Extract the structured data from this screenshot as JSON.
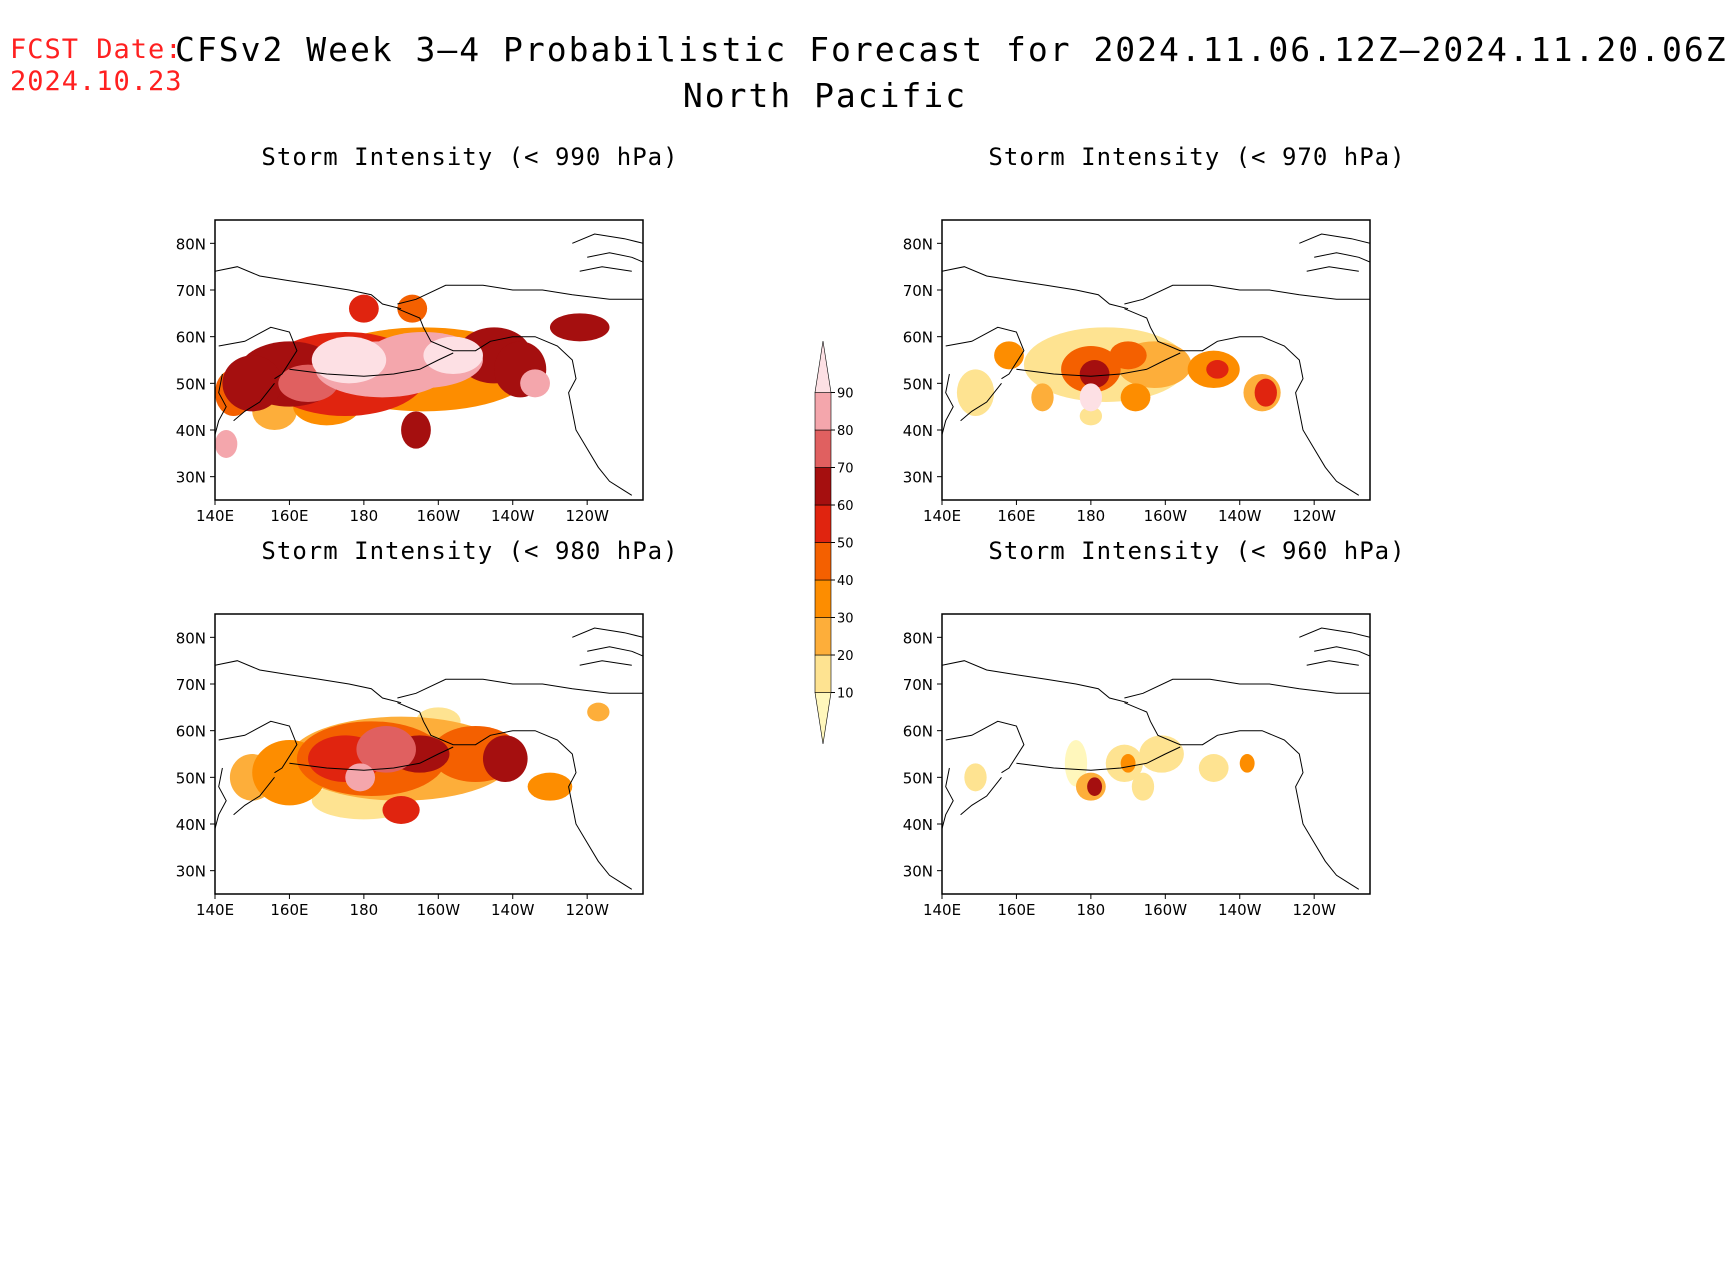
{
  "header": {
    "fcst_label": "FCST Date:",
    "fcst_date": "2024.10.23",
    "title": "CFSv2 Week 3–4 Probabilistic Forecast for 2024.11.06.12Z–2024.11.20.06Z",
    "subtitle": "North Pacific"
  },
  "axes": {
    "lat_labels": [
      "80N",
      "70N",
      "60N",
      "50N",
      "40N",
      "30N"
    ],
    "lon_labels": [
      "140E",
      "160E",
      "180",
      "160W",
      "140W",
      "120W"
    ]
  },
  "panels": [
    {
      "title": "Storm Intensity (< 990 hPa)",
      "threshold_hPa": 990
    },
    {
      "title": "Storm Intensity (< 970 hPa)",
      "threshold_hPa": 970
    },
    {
      "title": "Storm Intensity (< 980 hPa)",
      "threshold_hPa": 980
    },
    {
      "title": "Storm Intensity (< 960 hPa)",
      "threshold_hPa": 960
    }
  ],
  "colorbar": {
    "levels": [
      "10",
      "20",
      "30",
      "40",
      "50",
      "60",
      "70",
      "80",
      "90"
    ],
    "colors": [
      "#fff7bc",
      "#fee391",
      "#fdae3a",
      "#fd8d00",
      "#f46000",
      "#e0240f",
      "#a50f0f",
      "#e06060",
      "#f4a6ac",
      "#fde0e4"
    ]
  }
}
